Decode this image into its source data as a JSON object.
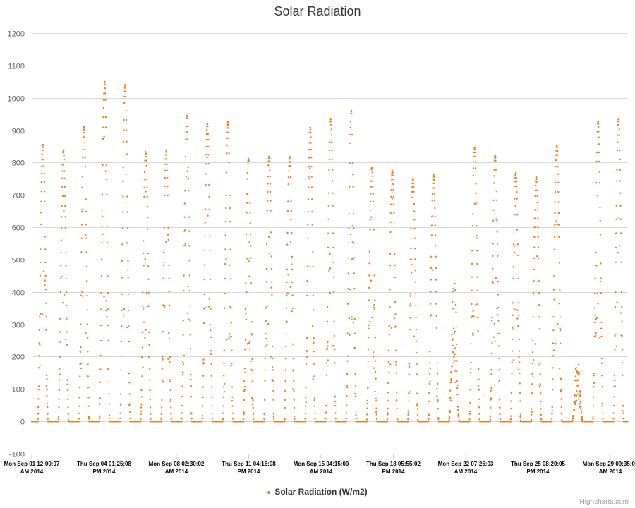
{
  "chart_data": {
    "type": "scatter",
    "title": "Solar Radiation",
    "ylim": [
      -100,
      1200
    ],
    "y_ticks": [
      -100,
      0,
      100,
      200,
      300,
      400,
      500,
      600,
      700,
      800,
      900,
      1000,
      1100,
      1200
    ],
    "x_tick_labels": [
      {
        "line1": "Mon Sep 01 12:00:07",
        "line2": "AM 2014"
      },
      {
        "line1": "Thu Sep 04 01:25:08",
        "line2": "PM 2014"
      },
      {
        "line1": "Mon Sep 08 02:30:02",
        "line2": "AM 2014"
      },
      {
        "line1": "Thu Sep 11 04:15:08",
        "line2": "PM 2014"
      },
      {
        "line1": "Mon Sep 15 04:15:00",
        "line2": "AM 2014"
      },
      {
        "line1": "Thu Sep 18 05:55:02",
        "line2": "PM 2014"
      },
      {
        "line1": "Mon Sep 22 07:25:03",
        "line2": "AM 2014"
      },
      {
        "line1": "Thu Sep 25 08:20:05",
        "line2": "PM 2014"
      },
      {
        "line1": "Mon Sep 29 09:35:04",
        "line2": "AM 2014"
      }
    ],
    "x_start": "2014-09-01",
    "x_end": "2014-09-30",
    "grid": true,
    "legend_position": "bottom-center",
    "series": [
      {
        "name": "Solar Radiation (W/m2)",
        "color": "#f27b1a",
        "daily_peaks": [
          {
            "date": "2014-09-01",
            "peak": 855
          },
          {
            "date": "2014-09-02",
            "peak": 838
          },
          {
            "date": "2014-09-03",
            "peak": 910
          },
          {
            "date": "2014-09-04",
            "peak": 1050
          },
          {
            "date": "2014-09-05",
            "peak": 1040
          },
          {
            "date": "2014-09-06",
            "peak": 835
          },
          {
            "date": "2014-09-07",
            "peak": 840
          },
          {
            "date": "2014-09-08",
            "peak": 945
          },
          {
            "date": "2014-09-09",
            "peak": 920
          },
          {
            "date": "2014-09-10",
            "peak": 925
          },
          {
            "date": "2014-09-11",
            "peak": 812
          },
          {
            "date": "2014-09-12",
            "peak": 820
          },
          {
            "date": "2014-09-13",
            "peak": 818
          },
          {
            "date": "2014-09-14",
            "peak": 910
          },
          {
            "date": "2014-09-15",
            "peak": 935
          },
          {
            "date": "2014-09-16",
            "peak": 960
          },
          {
            "date": "2014-09-17",
            "peak": 785
          },
          {
            "date": "2014-09-18",
            "peak": 775
          },
          {
            "date": "2014-09-19",
            "peak": 750
          },
          {
            "date": "2014-09-20",
            "peak": 762
          },
          {
            "date": "2014-09-21",
            "peak": 480
          },
          {
            "date": "2014-09-22",
            "peak": 848
          },
          {
            "date": "2014-09-23",
            "peak": 822
          },
          {
            "date": "2014-09-24",
            "peak": 768
          },
          {
            "date": "2014-09-25",
            "peak": 755
          },
          {
            "date": "2014-09-26",
            "peak": 853
          },
          {
            "date": "2014-09-27",
            "peak": 205
          },
          {
            "date": "2014-09-28",
            "peak": 928
          },
          {
            "date": "2014-09-29",
            "peak": 935
          }
        ]
      }
    ]
  },
  "credits": "Highcharts.com"
}
